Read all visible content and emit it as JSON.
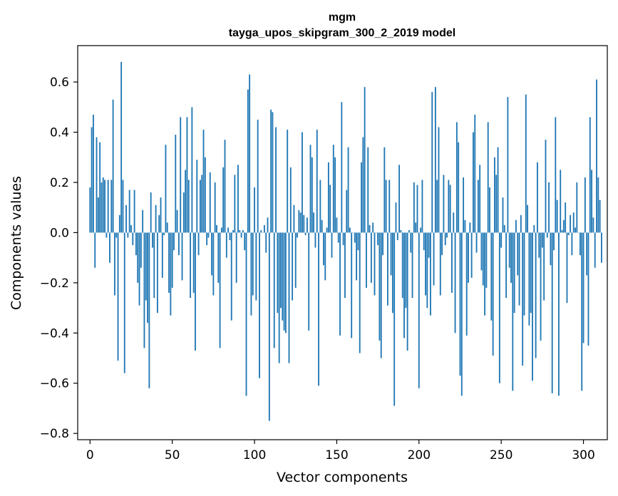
{
  "chart_data": {
    "type": "bar",
    "title": "mgm",
    "subtitle": "tayga_upos_skipgram_300_2_2019 model",
    "xlabel": "Vector components",
    "ylabel": "Components values",
    "xlim": [
      -7.5,
      314.5
    ],
    "ylim": [
      -0.825,
      0.745
    ],
    "x_ticks": [
      0,
      50,
      100,
      150,
      200,
      250,
      300
    ],
    "x_tick_labels": [
      "0",
      "50",
      "100",
      "150",
      "200",
      "250",
      "300"
    ],
    "y_ticks": [
      0.6,
      0.4,
      0.2,
      0.0,
      -0.2,
      -0.4,
      -0.6,
      -0.8
    ],
    "y_tick_labels": [
      "0.6",
      "0.4",
      "0.2",
      "0.0",
      "−0.2",
      "−0.4",
      "−0.6",
      "−0.8"
    ],
    "bar_color": "#1f77b4",
    "grid": false,
    "legend": "none",
    "values": [
      0.18,
      0.42,
      0.47,
      -0.14,
      0.38,
      0.14,
      0.36,
      0.2,
      0.22,
      0.21,
      -0.02,
      0.21,
      -0.12,
      0.21,
      0.53,
      -0.25,
      -0.02,
      -0.51,
      0.07,
      0.68,
      0.21,
      -0.56,
      0.11,
      -0.02,
      0.17,
      0.03,
      -0.05,
      0.17,
      -0.09,
      -0.2,
      -0.29,
      -0.14,
      0.09,
      -0.46,
      -0.27,
      -0.36,
      -0.62,
      0.16,
      -0.06,
      -0.26,
      0.11,
      -0.32,
      0.07,
      0.14,
      -0.18,
      -0.01,
      0.35,
      0.04,
      -0.24,
      -0.33,
      -0.22,
      -0.07,
      0.39,
      0.09,
      -0.09,
      0.46,
      -0.19,
      0.16,
      0.25,
      0.46,
      0.21,
      -0.26,
      0.5,
      -0.24,
      -0.47,
      0.29,
      -0.09,
      0.21,
      0.23,
      0.41,
      0.3,
      -0.05,
      -0.02,
      0.24,
      -0.17,
      -0.25,
      0.2,
      0.03,
      -0.2,
      -0.46,
      0.02,
      0.26,
      0.37,
      -0.1,
      0.02,
      -0.03,
      -0.35,
      0.01,
      0.23,
      -0.2,
      0.27,
      0.01,
      -0.02,
      0.01,
      -0.07,
      -0.65,
      0.57,
      0.63,
      -0.33,
      -0.25,
      0.18,
      -0.27,
      0.45,
      -0.58,
      0.01,
      0.0,
      0.03,
      -0.08,
      0.06,
      -0.75,
      0.49,
      0.48,
      -0.46,
      0.42,
      -0.32,
      -0.52,
      -0.3,
      -0.35,
      -0.39,
      -0.4,
      0.41,
      -0.52,
      0.26,
      -0.27,
      0.11,
      -0.22,
      -0.02,
      0.09,
      0.08,
      0.4,
      0.07,
      -0.01,
      0.06,
      -0.39,
      0.35,
      0.3,
      0.08,
      -0.06,
      0.41,
      -0.61,
      0.21,
      0.05,
      -0.13,
      -0.19,
      0.02,
      0.28,
      0.19,
      -0.1,
      0.35,
      0.3,
      0.06,
      -0.04,
      -0.41,
      0.52,
      -0.05,
      -0.26,
      0.17,
      0.34,
      0.02,
      -0.42,
      0.0,
      -0.04,
      -0.19,
      -0.07,
      -0.48,
      0.28,
      0.38,
      0.58,
      -0.22,
      0.34,
      0.03,
      -0.2,
      0.04,
      -0.25,
      0.0,
      -0.05,
      -0.43,
      -0.5,
      -0.09,
      0.34,
      0.21,
      -0.29,
      0.21,
      -0.17,
      -0.32,
      -0.69,
      0.12,
      -0.03,
      0.27,
      0.01,
      -0.26,
      -0.42,
      -0.3,
      -0.47,
      0.01,
      -0.08,
      -0.26,
      0.2,
      0.04,
      0.19,
      -0.62,
      0.02,
      0.21,
      -0.07,
      -0.25,
      -0.3,
      -0.1,
      -0.33,
      0.56,
      -0.21,
      0.58,
      0.21,
      0.42,
      -0.25,
      -0.09,
      0.23,
      -0.05,
      -0.02,
      0.21,
      0.19,
      -0.24,
      0.08,
      -0.4,
      0.44,
      0.36,
      -0.57,
      -0.65,
      0.22,
      0.05,
      -0.41,
      -0.2,
      0.04,
      -0.18,
      0.4,
      0.47,
      -0.08,
      0.21,
      0.27,
      -0.15,
      -0.21,
      -0.33,
      -0.22,
      0.44,
      0.18,
      -0.35,
      -0.49,
      0.3,
      0.23,
      0.34,
      -0.6,
      -0.06,
      0.14,
      0.03,
      -0.26,
      0.54,
      -0.14,
      -0.2,
      -0.63,
      -0.32,
      0.05,
      -0.17,
      -0.29,
      0.07,
      -0.53,
      -0.33,
      0.55,
      0.11,
      -0.37,
      -0.32,
      -0.59,
      0.03,
      -0.5,
      0.28,
      -0.1,
      -0.43,
      -0.06,
      -0.27,
      0.37,
      -0.02,
      0.2,
      -0.13,
      -0.64,
      -0.07,
      0.46,
      0.13,
      -0.65,
      0.25,
      0.01,
      0.05,
      0.12,
      -0.28,
      -0.01,
      0.07,
      -0.09,
      0.08,
      0.02,
      0.2,
      0.0,
      -0.09,
      -0.63,
      -0.44,
      0.22,
      -0.17,
      -0.45,
      0.46,
      0.25,
      0.06,
      -0.14,
      0.61,
      0.22,
      0.13,
      -0.12
    ]
  }
}
